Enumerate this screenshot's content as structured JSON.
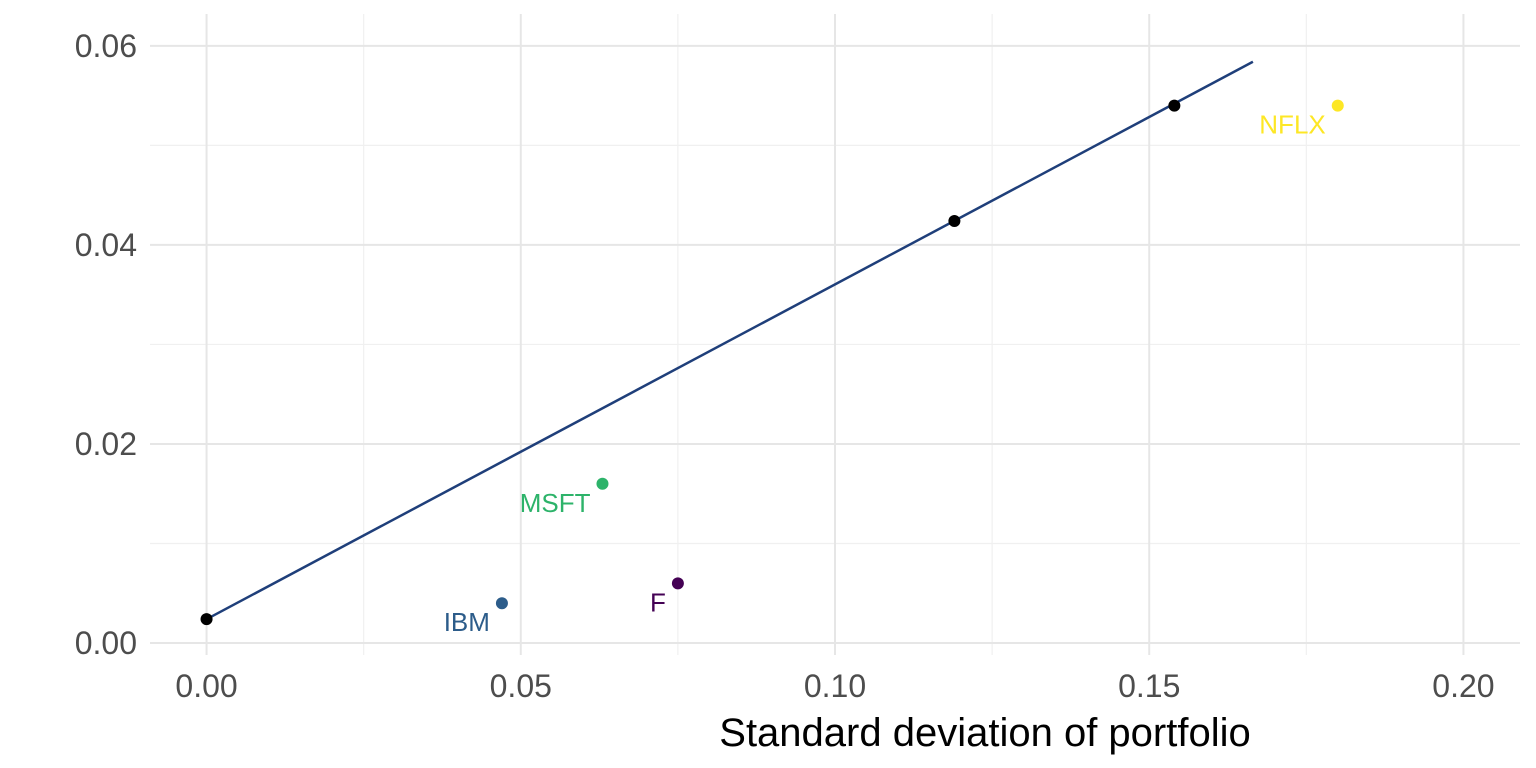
{
  "chart_data": {
    "type": "scatter",
    "title": "",
    "xlabel": "Standard deviation of portfolio",
    "ylabel": "",
    "xlim": [
      -0.009,
      0.209
    ],
    "ylim": [
      -0.0012,
      0.0632
    ],
    "x_ticks": [
      0.0,
      0.05,
      0.1,
      0.15,
      0.2
    ],
    "x_tick_labels": [
      "0.00",
      "0.05",
      "0.10",
      "0.15",
      "0.20"
    ],
    "y_ticks": [
      0.0,
      0.02,
      0.04,
      0.06
    ],
    "y_tick_labels": [
      "0.00",
      "0.02",
      "0.04",
      "0.06"
    ],
    "grid": true,
    "line": {
      "name": "",
      "color": "#1f3f7a",
      "x": [
        0.0,
        0.1665
      ],
      "y": [
        0.0024,
        0.0584
      ]
    },
    "portfolio_points": {
      "color": "#000000",
      "x": [
        0.0,
        0.119,
        0.154
      ],
      "y": [
        0.0024,
        0.0424,
        0.054
      ]
    },
    "assets": [
      {
        "label": "F",
        "x": 0.075,
        "y": 0.006,
        "color": "#440154"
      },
      {
        "label": "IBM",
        "x": 0.047,
        "y": 0.004,
        "color": "#2c5c8a"
      },
      {
        "label": "MSFT",
        "x": 0.063,
        "y": 0.016,
        "color": "#2db36a"
      },
      {
        "label": "NFLX",
        "x": 0.18,
        "y": 0.054,
        "color": "#fde725"
      }
    ]
  }
}
